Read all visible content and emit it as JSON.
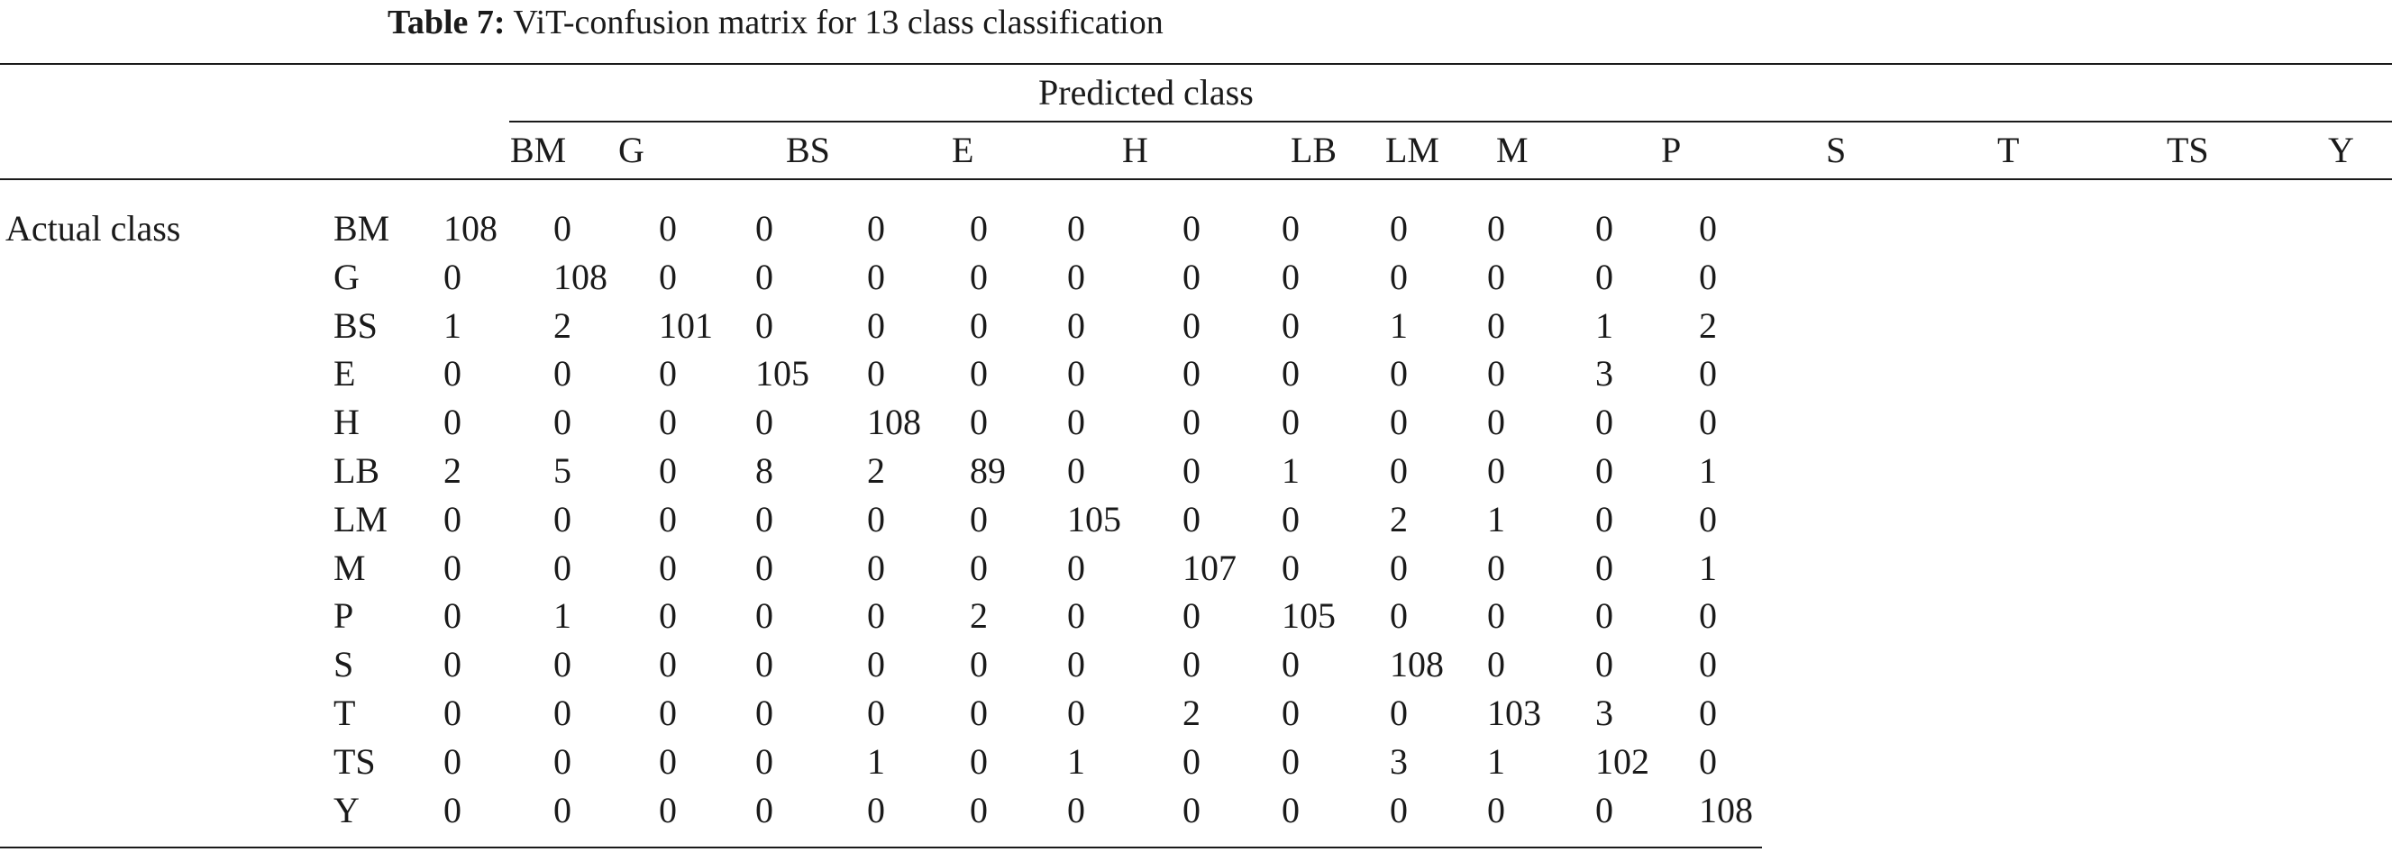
{
  "caption": {
    "label": "Table 7:",
    "text": "ViT-confusion matrix for 13 class classification"
  },
  "header": {
    "spanner": "Predicted class",
    "columns": [
      "BM",
      "G",
      "BS",
      "E",
      "H",
      "LB",
      "LM",
      "M",
      "P",
      "S",
      "T",
      "TS",
      "Y"
    ]
  },
  "stub": {
    "label": "Actual class"
  },
  "rows": [
    {
      "label": "BM",
      "values": [
        "108",
        "0",
        "0",
        "0",
        "0",
        "0",
        "0",
        "0",
        "0",
        "0",
        "0",
        "0",
        "0"
      ]
    },
    {
      "label": "G",
      "values": [
        "0",
        "108",
        "0",
        "0",
        "0",
        "0",
        "0",
        "0",
        "0",
        "0",
        "0",
        "0",
        "0"
      ]
    },
    {
      "label": "BS",
      "values": [
        "1",
        "2",
        "101",
        "0",
        "0",
        "0",
        "0",
        "0",
        "0",
        "1",
        "0",
        "1",
        "2"
      ]
    },
    {
      "label": "E",
      "values": [
        "0",
        "0",
        "0",
        "105",
        "0",
        "0",
        "0",
        "0",
        "0",
        "0",
        "0",
        "3",
        "0"
      ]
    },
    {
      "label": "H",
      "values": [
        "0",
        "0",
        "0",
        "0",
        "108",
        "0",
        "0",
        "0",
        "0",
        "0",
        "0",
        "0",
        "0"
      ]
    },
    {
      "label": "LB",
      "values": [
        "2",
        "5",
        "0",
        "8",
        "2",
        "89",
        "0",
        "0",
        "1",
        "0",
        "0",
        "0",
        "1"
      ]
    },
    {
      "label": "LM",
      "values": [
        "0",
        "0",
        "0",
        "0",
        "0",
        "0",
        "105",
        "0",
        "0",
        "2",
        "1",
        "0",
        "0"
      ]
    },
    {
      "label": "M",
      "values": [
        "0",
        "0",
        "0",
        "0",
        "0",
        "0",
        "0",
        "107",
        "0",
        "0",
        "0",
        "0",
        "1"
      ]
    },
    {
      "label": "P",
      "values": [
        "0",
        "1",
        "0",
        "0",
        "0",
        "2",
        "0",
        "0",
        "105",
        "0",
        "0",
        "0",
        "0"
      ]
    },
    {
      "label": "S",
      "values": [
        "0",
        "0",
        "0",
        "0",
        "0",
        "0",
        "0",
        "0",
        "0",
        "108",
        "0",
        "0",
        "0"
      ]
    },
    {
      "label": "T",
      "values": [
        "0",
        "0",
        "0",
        "0",
        "0",
        "0",
        "0",
        "2",
        "0",
        "0",
        "103",
        "3",
        "0"
      ]
    },
    {
      "label": "TS",
      "values": [
        "0",
        "0",
        "0",
        "0",
        "1",
        "0",
        "1",
        "0",
        "0",
        "3",
        "1",
        "102",
        "0"
      ]
    },
    {
      "label": "Y",
      "values": [
        "0",
        "0",
        "0",
        "0",
        "0",
        "0",
        "0",
        "0",
        "0",
        "0",
        "0",
        "0",
        "108"
      ]
    }
  ]
}
